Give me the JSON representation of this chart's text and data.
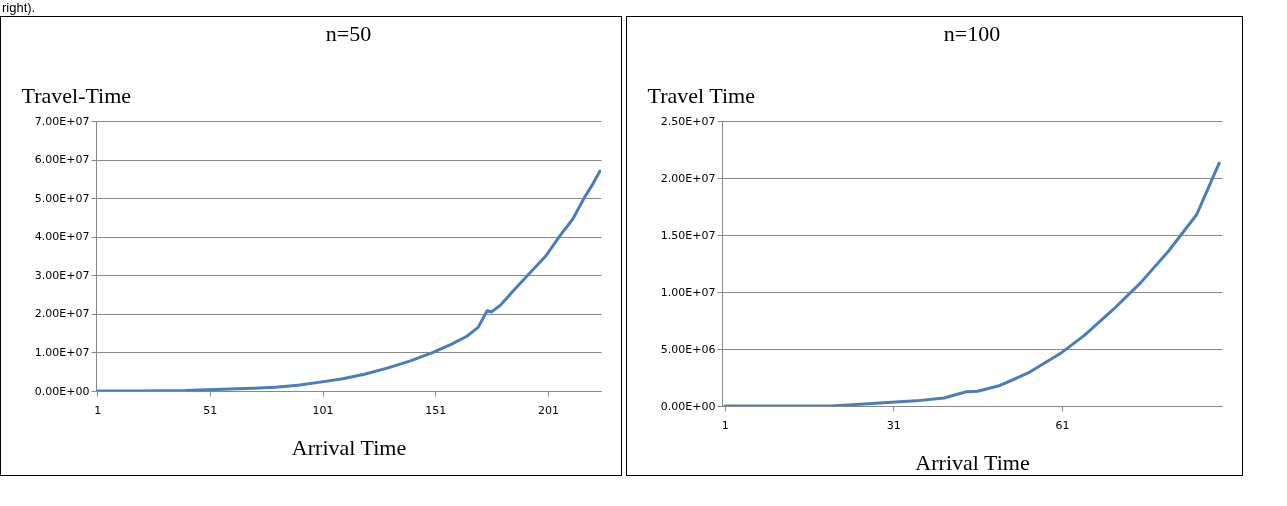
{
  "chart_data": [
    {
      "type": "line",
      "title": "n=50",
      "xlabel": "Arrival Time",
      "ylabel": "Travel-Time",
      "annotations": [
        "right)."
      ],
      "x": [
        1,
        20,
        40,
        50,
        60,
        70,
        80,
        90,
        100,
        110,
        120,
        130,
        140,
        150,
        158,
        165,
        170,
        174,
        176,
        180,
        185,
        192,
        200,
        206,
        212,
        217,
        221,
        224
      ],
      "series": [
        {
          "color": "#4a7ebb",
          "values": [
            0,
            0,
            100000,
            300000,
            500000,
            700000,
            1000000,
            1500000,
            2300000,
            3200000,
            4400000,
            6000000,
            7800000,
            10000000,
            12100000,
            14200000,
            16500000,
            20800000,
            20500000,
            22300000,
            25600000,
            30000000,
            35000000,
            40000000,
            44600000,
            50000000,
            53800000,
            57000000
          ]
        }
      ],
      "xlim": [
        0.5,
        224.5
      ],
      "xticks": [
        1,
        51,
        101,
        151,
        201
      ],
      "ylim": [
        0,
        70000000
      ],
      "yticks": [
        {
          "value": 0,
          "label": "0.00E+00"
        },
        {
          "value": 10000000,
          "label": "1.00E+07"
        },
        {
          "value": 20000000,
          "label": "2.00E+07"
        },
        {
          "value": 30000000,
          "label": "3.00E+07"
        },
        {
          "value": 40000000,
          "label": "4.00E+07"
        },
        {
          "value": 50000000,
          "label": "5.00E+07"
        },
        {
          "value": 60000000,
          "label": "6.00E+07"
        },
        {
          "value": 70000000,
          "label": "7.00E+07"
        }
      ],
      "grid": "y"
    },
    {
      "type": "line",
      "title": "n=100",
      "xlabel": "Arrival Time",
      "ylabel": "Travel Time",
      "x": [
        1,
        10,
        20,
        30,
        35,
        40,
        44,
        46,
        50,
        55,
        61,
        65,
        70,
        75,
        80,
        85,
        89
      ],
      "series": [
        {
          "color": "#4a7ebb",
          "values": [
            0,
            0,
            0,
            300000,
            450000,
            700000,
            1250000,
            1300000,
            1800000,
            2900000,
            4700000,
            6200000,
            8400000,
            10800000,
            13600000,
            16800000,
            21300000
          ]
        }
      ],
      "xlim": [
        0.5,
        89.5
      ],
      "xticks": [
        1,
        31,
        61
      ],
      "ylim": [
        0,
        25000000
      ],
      "yticks": [
        {
          "value": 0,
          "label": "0.00E+00"
        },
        {
          "value": 5000000,
          "label": "5.00E+06"
        },
        {
          "value": 10000000,
          "label": "1.00E+07"
        },
        {
          "value": 15000000,
          "label": "1.50E+07"
        },
        {
          "value": 20000000,
          "label": "2.00E+07"
        },
        {
          "value": 25000000,
          "label": "2.50E+07"
        }
      ],
      "grid": "y"
    }
  ]
}
